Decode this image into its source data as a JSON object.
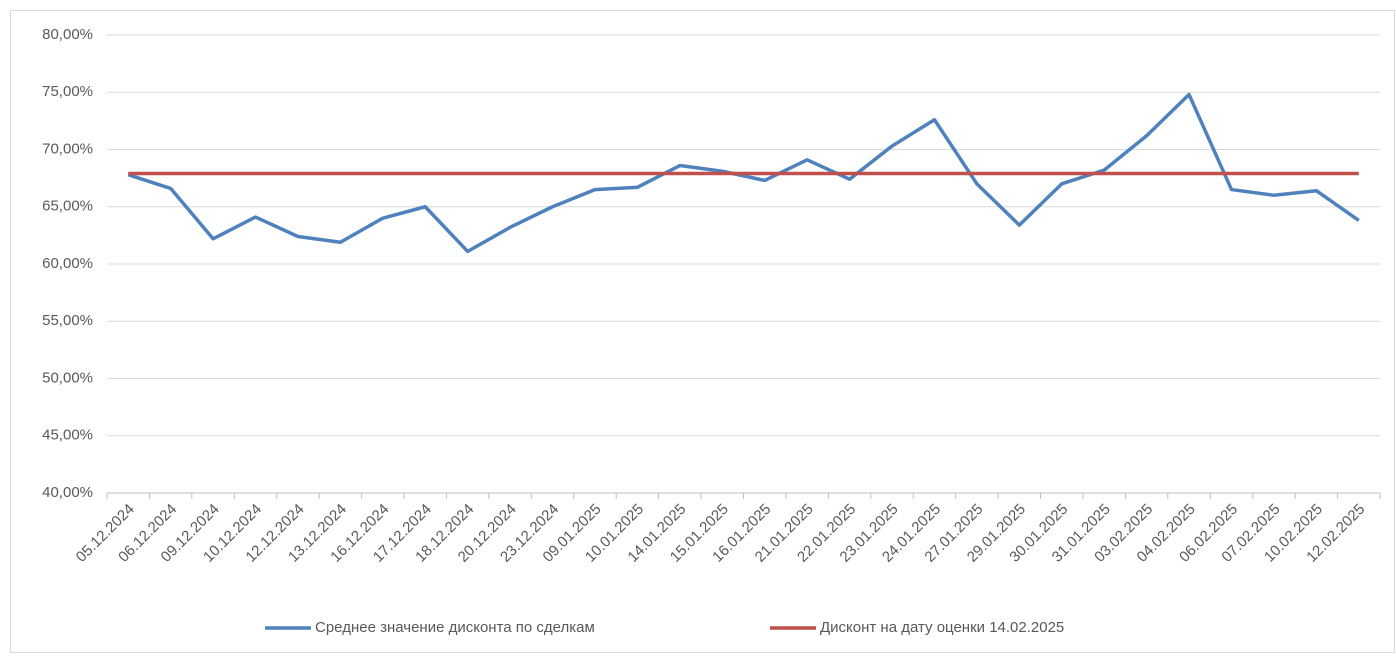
{
  "chart_data": {
    "type": "line",
    "categories": [
      "05.12.2024",
      "06.12.2024",
      "09.12.2024",
      "10.12.2024",
      "12.12.2024",
      "13.12.2024",
      "16.12.2024",
      "17.12.2024",
      "18.12.2024",
      "20.12.2024",
      "23.12.2024",
      "09.01.2025",
      "10.01.2025",
      "14.01.2025",
      "15.01.2025",
      "16.01.2025",
      "21.01.2025",
      "22.01.2025",
      "23.01.2025",
      "24.01.2025",
      "27.01.2025",
      "29.01.2025",
      "30.01.2025",
      "31.01.2025",
      "03.02.2025",
      "04.02.2025",
      "06.02.2025",
      "07.02.2025",
      "10.02.2025",
      "12.02.2025"
    ],
    "series": [
      {
        "name": "Среднее значение дисконта по сделкам",
        "color": "#4f81bd",
        "values": [
          67.8,
          66.6,
          62.2,
          64.1,
          62.4,
          61.9,
          64.0,
          65.0,
          61.1,
          63.2,
          65.0,
          66.5,
          66.7,
          68.6,
          68.1,
          67.3,
          69.1,
          67.4,
          70.3,
          72.6,
          67.0,
          63.4,
          67.0,
          68.2,
          71.2,
          74.8,
          66.5,
          66.0,
          66.4,
          63.8
        ]
      },
      {
        "name": "Дисконт на дату оценки 14.02.2025",
        "color": "#c0504d",
        "values": [
          67.9,
          67.9,
          67.9,
          67.9,
          67.9,
          67.9,
          67.9,
          67.9,
          67.9,
          67.9,
          67.9,
          67.9,
          67.9,
          67.9,
          67.9,
          67.9,
          67.9,
          67.9,
          67.9,
          67.9,
          67.9,
          67.9,
          67.9,
          67.9,
          67.9,
          67.9,
          67.9,
          67.9,
          67.9,
          67.9
        ]
      }
    ],
    "ylim": [
      40,
      80
    ],
    "yticks": [
      {
        "value": 40,
        "label": "40,00%"
      },
      {
        "value": 45,
        "label": "45,00%"
      },
      {
        "value": 50,
        "label": "50,00%"
      },
      {
        "value": 55,
        "label": "55,00%"
      },
      {
        "value": 60,
        "label": "60,00%"
      },
      {
        "value": 65,
        "label": "65,00%"
      },
      {
        "value": 70,
        "label": "70,00%"
      },
      {
        "value": 75,
        "label": "75,00%"
      },
      {
        "value": 80,
        "label": "80,00%"
      }
    ],
    "grid": true,
    "legend": "bottom"
  }
}
